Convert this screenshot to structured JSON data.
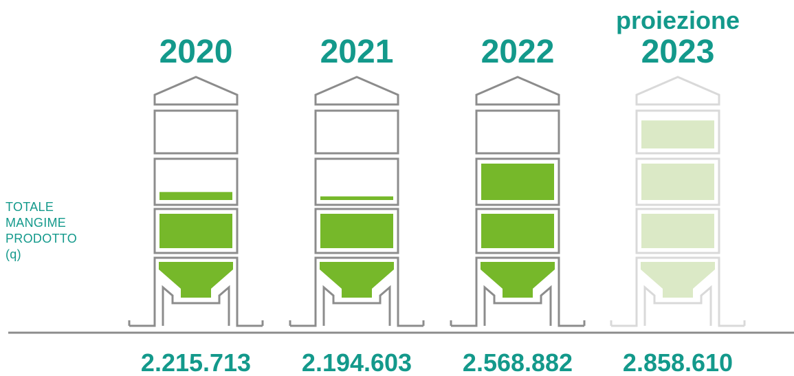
{
  "chart_data": {
    "type": "bar",
    "ylabel": [
      "TOTALE",
      "MANGIME",
      "PRODOTTO",
      "(q)"
    ],
    "categories": [
      "2020",
      "2021",
      "2022",
      "2023"
    ],
    "category_prefix": [
      "",
      "",
      "",
      "proiezione"
    ],
    "values": [
      2215713,
      2194603,
      2568882,
      2858610
    ],
    "value_labels": [
      "2.215.713",
      "2.194.603",
      "2.568.882",
      "2.858.610"
    ],
    "projected": [
      false,
      false,
      false,
      true
    ],
    "fill_levels": [
      2.22,
      2.1,
      3.0,
      3.85
    ],
    "colors": {
      "title": "#13998b",
      "fill": "#76b82a",
      "projected_fill": "#dbe9c6",
      "outline": "#8c8c8c",
      "projected_outline": "#d9d9d9",
      "baseline": "#8c8c8c"
    }
  }
}
